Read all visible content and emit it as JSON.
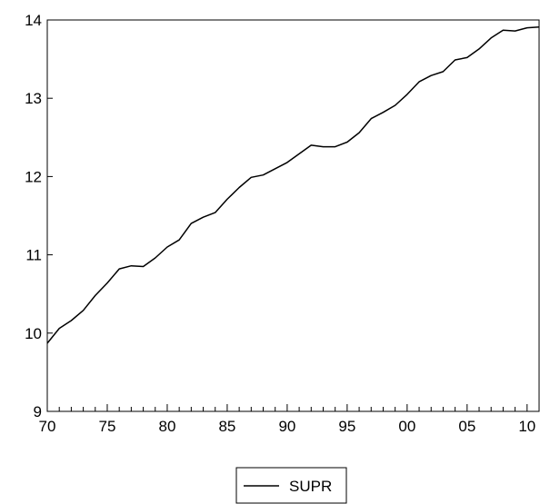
{
  "chart_data": {
    "type": "line",
    "title": "",
    "xlabel": "",
    "ylabel": "",
    "x_tick_labels": [
      "70",
      "75",
      "80",
      "85",
      "90",
      "95",
      "00",
      "05",
      "10"
    ],
    "x_tick_years": [
      1970,
      1975,
      1980,
      1985,
      1990,
      1995,
      2000,
      2005,
      2010
    ],
    "xlim": [
      1970,
      2011
    ],
    "y_tick_labels": [
      "9",
      "10",
      "11",
      "12",
      "13",
      "14"
    ],
    "y_tick_values": [
      9,
      10,
      11,
      12,
      13,
      14
    ],
    "ylim": [
      9,
      14
    ],
    "grid": false,
    "legend_position": "bottom-center",
    "series": [
      {
        "name": "SUPR",
        "color": "#000000",
        "x": [
          1970,
          1971,
          1972,
          1973,
          1974,
          1975,
          1976,
          1977,
          1978,
          1979,
          1980,
          1981,
          1982,
          1983,
          1984,
          1985,
          1986,
          1987,
          1988,
          1989,
          1990,
          1991,
          1992,
          1993,
          1994,
          1995,
          1996,
          1997,
          1998,
          1999,
          2000,
          2001,
          2002,
          2003,
          2004,
          2005,
          2006,
          2007,
          2008,
          2009,
          2010,
          2011
        ],
        "values": [
          9.87,
          10.06,
          10.16,
          10.29,
          10.48,
          10.64,
          10.82,
          10.86,
          10.85,
          10.96,
          11.1,
          11.19,
          11.4,
          11.48,
          11.54,
          11.71,
          11.86,
          11.99,
          12.02,
          12.1,
          12.18,
          12.29,
          12.4,
          12.38,
          12.38,
          12.44,
          12.56,
          12.74,
          12.82,
          12.91,
          13.05,
          13.21,
          13.29,
          13.34,
          13.49,
          13.52,
          13.63,
          13.77,
          13.87,
          13.86,
          13.9,
          13.91
        ]
      }
    ]
  }
}
